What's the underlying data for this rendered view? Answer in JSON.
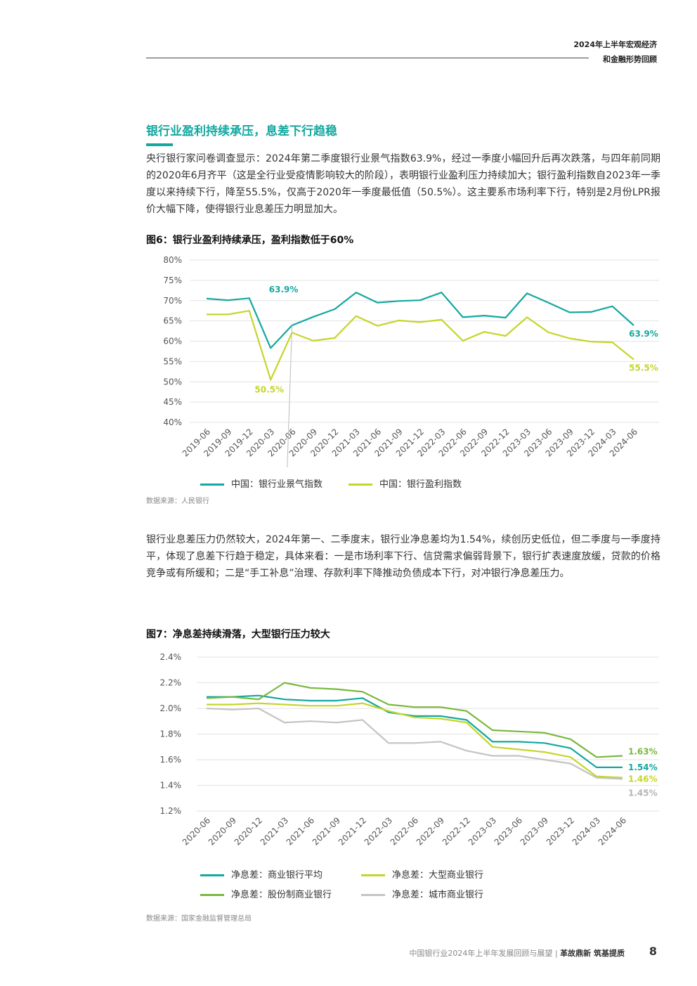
{
  "header": {
    "line1": "2024年上半年宏观经济",
    "line2": "和金融形势回顾"
  },
  "section_title": "银行业盈利持续承压，息差下行趋稳",
  "paragraph1": "央行银行家问卷调查显示：2024年第二季度银行业景气指数63.9%，经过一季度小幅回升后再次跌落，与四年前同期的2020年6月齐平（这是全行业受疫情影响较大的阶段），表明银行业盈利压力持续加大；银行盈利指数自2023年一季度以来持续下行，降至55.5%，仅高于2020年一季度最低值（50.5%）。这主要系市场利率下行，特别是2月份LPR报价大幅下降，使得银行业息差压力明显加大。",
  "paragraph2": "银行业息差压力仍然较大，2024年第一、二季度末，银行业净息差均为1.54%，续创历史低位，但二季度与一季度持平，体现了息差下行趋于稳定，具体来看：一是市场利率下行、信贷需求偏弱背景下，银行扩表速度放缓，贷款的价格竞争或有所缓和；二是“手工补息”治理、存款利率下降推动负债成本下行，对冲银行净息差压力。",
  "figure6": {
    "title": "图6：银行业盈利持续承压，盈利指数低于60%",
    "source": "数据来源：人民银行"
  },
  "figure7": {
    "title": "图7：净息差持续滑落，大型银行压力较大",
    "source": "数据来源：国家金融监督管理总局"
  },
  "footer": {
    "text": "中国银行业2024年上半年发展回顾与展望",
    "separator": "|",
    "slogan": "革故鼎新 筑基提质",
    "page": "8"
  },
  "colors": {
    "teal": "#13a8a0",
    "yellowgreen": "#c5d52a",
    "green": "#7ab83c",
    "gray": "#c4c4c4"
  },
  "chart_data": [
    {
      "type": "line",
      "title": "图6：银行业盈利持续承压，盈利指数低于60%",
      "x": [
        "2019-06",
        "2019-09",
        "2019-12",
        "2020-03",
        "2020-06",
        "2020-09",
        "2020-12",
        "2021-03",
        "2021-06",
        "2021-09",
        "2021-12",
        "2022-03",
        "2022-06",
        "2022-09",
        "2022-12",
        "2023-03",
        "2023-06",
        "2023-09",
        "2023-12",
        "2024-03",
        "2024-06"
      ],
      "ylim": [
        40,
        80
      ],
      "yticks": [
        "40%",
        "45%",
        "50%",
        "55%",
        "60%",
        "65%",
        "70%",
        "75%",
        "80%"
      ],
      "grid": true,
      "legend": "bottom",
      "series": [
        {
          "name": "中国：银行业景气指数",
          "color": "#13a8a0",
          "values": [
            70.5,
            70.1,
            70.6,
            58.3,
            63.9,
            66.0,
            67.9,
            72.0,
            69.5,
            69.9,
            70.1,
            72.0,
            65.9,
            66.3,
            65.8,
            71.8,
            69.5,
            67.1,
            67.2,
            68.6,
            63.9
          ]
        },
        {
          "name": "中国：银行盈利指数",
          "color": "#c5d52a",
          "values": [
            66.6,
            66.6,
            67.5,
            50.5,
            62.1,
            60.1,
            60.8,
            66.2,
            63.8,
            65.1,
            64.7,
            65.3,
            60.1,
            62.3,
            61.3,
            65.9,
            62.2,
            60.7,
            59.9,
            59.7,
            55.5
          ]
        }
      ],
      "annotations": [
        "63.9%",
        "50.5%",
        "63.9%",
        "55.5%"
      ]
    },
    {
      "type": "line",
      "title": "图7：净息差持续滑落，大型银行压力较大",
      "x": [
        "2020-06",
        "2020-09",
        "2020-12",
        "2021-03",
        "2021-06",
        "2021-09",
        "2021-12",
        "2022-03",
        "2022-06",
        "2022-09",
        "2022-12",
        "2023-03",
        "2023-06",
        "2023-09",
        "2023-12",
        "2024-03",
        "2024-06"
      ],
      "ylim": [
        1.2,
        2.4
      ],
      "yticks": [
        "1.2%",
        "1.4%",
        "1.6%",
        "1.8%",
        "2.0%",
        "2.2%",
        "2.4%"
      ],
      "grid": true,
      "legend": "bottom",
      "series": [
        {
          "name": "净息差：商业银行平均",
          "color": "#13a8a0",
          "values": [
            2.09,
            2.09,
            2.1,
            2.07,
            2.06,
            2.06,
            2.08,
            1.97,
            1.94,
            1.94,
            1.91,
            1.74,
            1.74,
            1.73,
            1.69,
            1.54,
            1.54
          ]
        },
        {
          "name": "净息差：大型商业银行",
          "color": "#c5d52a",
          "values": [
            2.03,
            2.03,
            2.04,
            2.03,
            2.02,
            2.02,
            2.04,
            1.98,
            1.93,
            1.92,
            1.89,
            1.7,
            1.68,
            1.66,
            1.62,
            1.47,
            1.46
          ]
        },
        {
          "name": "净息差：股份制商业银行",
          "color": "#7ab83c",
          "values": [
            2.08,
            2.09,
            2.07,
            2.2,
            2.16,
            2.15,
            2.13,
            2.03,
            2.01,
            2.01,
            1.98,
            1.83,
            1.82,
            1.81,
            1.76,
            1.62,
            1.63
          ]
        },
        {
          "name": "净息差：城市商业银行",
          "color": "#c4c4c4",
          "values": [
            2.0,
            1.99,
            2.0,
            1.89,
            1.9,
            1.89,
            1.91,
            1.73,
            1.73,
            1.74,
            1.67,
            1.63,
            1.63,
            1.6,
            1.57,
            1.46,
            1.45
          ]
        }
      ],
      "annotations": [
        "1.63%",
        "1.54%",
        "1.46%",
        "1.45%"
      ]
    }
  ]
}
